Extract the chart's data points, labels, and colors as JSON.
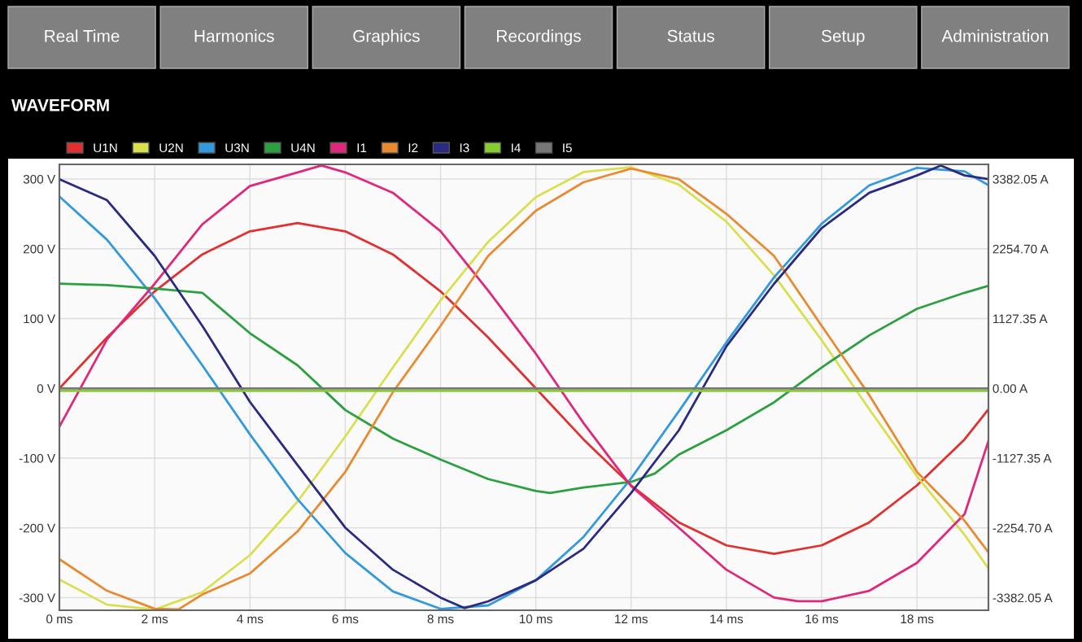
{
  "chart_data": {
    "type": "line",
    "title": "WAVEFORM",
    "annotations": [
      "Real Time",
      "Harmonics",
      "Graphics",
      "Recordings",
      "Status",
      "Setup",
      "Administration"
    ],
    "xlim": [
      0,
      19.5
    ],
    "ylim": [
      -318,
      321
    ],
    "y2lim": [
      -3585,
      3619
    ],
    "xticks": [
      {
        "value": 0,
        "label": "0 ms"
      },
      {
        "value": 2,
        "label": "2 ms"
      },
      {
        "value": 4,
        "label": "4 ms"
      },
      {
        "value": 6,
        "label": "6 ms"
      },
      {
        "value": 8,
        "label": "8 ms"
      },
      {
        "value": 10,
        "label": "10 ms"
      },
      {
        "value": 12,
        "label": "12 ms"
      },
      {
        "value": 14,
        "label": "14 ms"
      },
      {
        "value": 16,
        "label": "16 ms"
      },
      {
        "value": 18,
        "label": "18 ms"
      }
    ],
    "yticks": [
      {
        "value": -300,
        "label": "-300 V"
      },
      {
        "value": -200,
        "label": "-200 V"
      },
      {
        "value": -100,
        "label": "-100 V"
      },
      {
        "value": 0,
        "label": "0 V"
      },
      {
        "value": 100,
        "label": "100 V"
      },
      {
        "value": 200,
        "label": "200 V"
      },
      {
        "value": 300,
        "label": "300 V"
      }
    ],
    "y2ticks": [
      {
        "value": -3382.05,
        "label": "-3382.05 A"
      },
      {
        "value": -2254.7,
        "label": "-2254.70 A"
      },
      {
        "value": -1127.35,
        "label": "-1127.35 A"
      },
      {
        "value": 0,
        "label": "0.00 A"
      },
      {
        "value": 1127.35,
        "label": "1127.35 A"
      },
      {
        "value": 2254.7,
        "label": "2254.70 A"
      },
      {
        "value": 3382.05,
        "label": "3382.05 A"
      }
    ],
    "grid": true,
    "legend": "top left",
    "series": [
      {
        "name": "U1N",
        "color": "#e03030",
        "x": [
          0,
          1,
          2,
          3,
          4,
          5,
          6,
          7,
          8,
          9,
          10,
          11,
          12,
          13,
          14,
          15,
          16,
          17,
          18,
          19,
          19.5
        ],
        "values": [
          0,
          73,
          139,
          192,
          225,
          237,
          225,
          192,
          139,
          73,
          0,
          -73,
          -139,
          -192,
          -225,
          -237,
          -225,
          -192,
          -139,
          -73,
          -30
        ]
      },
      {
        "name": "U2N",
        "color": "#d8e050",
        "x": [
          0,
          1,
          2,
          3,
          4,
          5,
          6,
          7,
          8,
          9,
          10,
          11,
          12,
          13,
          14,
          15,
          16,
          17,
          18,
          19,
          19.5
        ],
        "values": [
          -274,
          -310,
          -317,
          -292,
          -239,
          -162,
          -69,
          30,
          126,
          210,
          274,
          310,
          317,
          292,
          239,
          162,
          69,
          -30,
          -126,
          -210,
          -258
        ]
      },
      {
        "name": "U3N",
        "color": "#3399dd",
        "x": [
          0,
          1,
          2,
          3,
          4,
          5,
          6,
          7,
          8,
          9,
          10,
          11,
          12,
          13,
          14,
          15,
          16,
          17,
          18,
          19,
          19.5
        ],
        "values": [
          275,
          213,
          129,
          33,
          -66,
          -159,
          -236,
          -291,
          -316,
          -311,
          -275,
          -213,
          -129,
          -33,
          66,
          159,
          236,
          291,
          316,
          311,
          291
        ]
      },
      {
        "name": "U4N",
        "color": "#2ca040",
        "x": [
          0,
          1,
          2,
          3,
          4,
          5,
          6,
          7,
          8,
          9,
          10,
          10.3,
          11,
          12,
          12.5,
          13,
          14,
          15,
          16,
          17,
          18,
          19,
          19.5
        ],
        "values": [
          150,
          148,
          143,
          137,
          79,
          33,
          -31,
          -72,
          -102,
          -130,
          -147,
          -150,
          -142,
          -134,
          -122,
          -95,
          -60,
          -20,
          30,
          76,
          114,
          137,
          147
        ]
      },
      {
        "name": "I1",
        "color": "#e0287a",
        "axis": "y2",
        "x": [
          0,
          1,
          2,
          3,
          4,
          5,
          5.5,
          6,
          7,
          8,
          9,
          10,
          11,
          12,
          13,
          14,
          15,
          15.5,
          16,
          17,
          18,
          19,
          19.5
        ],
        "values": [
          -620,
          790,
          1690,
          2650,
          3270,
          3490,
          3600,
          3490,
          3160,
          2540,
          1580,
          560,
          -560,
          -1580,
          -2250,
          -2930,
          -3380,
          -3440,
          -3440,
          -3270,
          -2820,
          -2030,
          -850
        ]
      },
      {
        "name": "I2",
        "color": "#e88a30",
        "axis": "y2",
        "x": [
          0,
          1,
          2,
          2.5,
          3,
          4,
          5,
          6,
          7,
          8,
          9,
          10,
          11,
          12,
          13,
          14,
          15,
          16,
          17,
          18,
          19,
          19.5
        ],
        "values": [
          -2760,
          -3270,
          -3560,
          -3570,
          -3330,
          -2990,
          -2310,
          -1350,
          -60,
          1010,
          2140,
          2870,
          3330,
          3550,
          3380,
          2820,
          2140,
          1010,
          -110,
          -1350,
          -2140,
          -2650
        ]
      },
      {
        "name": "I3",
        "color": "#2a2a80",
        "axis": "y2",
        "x": [
          0,
          1,
          2,
          3,
          4,
          5,
          6,
          7,
          8,
          8.5,
          9,
          10,
          11,
          12,
          13,
          14,
          15,
          16,
          17,
          18,
          18.5,
          19,
          19.5
        ],
        "values": [
          3380,
          3040,
          2140,
          1010,
          -220,
          -1240,
          -2250,
          -2930,
          -3380,
          -3550,
          -3440,
          -3100,
          -2590,
          -1690,
          -680,
          680,
          1690,
          2590,
          3160,
          3440,
          3600,
          3440,
          3380
        ]
      },
      {
        "name": "I4",
        "color": "#88cc33",
        "axis": "y2",
        "x": [
          0,
          19.5
        ],
        "values": [
          -40,
          -40
        ]
      },
      {
        "name": "I5",
        "color": "#777777",
        "axis": "y2",
        "x": [
          0,
          19.5
        ],
        "values": [
          0,
          0
        ]
      }
    ]
  }
}
